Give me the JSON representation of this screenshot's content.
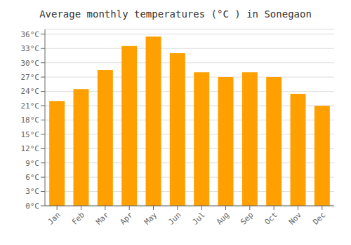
{
  "chart_data": {
    "type": "bar",
    "title": "Average monthly temperatures (°C ) in Sonegaon",
    "categories": [
      "Jan",
      "Feb",
      "Mar",
      "Apr",
      "May",
      "Jun",
      "Jul",
      "Aug",
      "Sep",
      "Oct",
      "Nov",
      "Dec"
    ],
    "values": [
      22,
      24.5,
      28.5,
      33.5,
      35.5,
      32,
      28,
      27,
      28,
      27,
      23.5,
      21
    ],
    "color": "#FFA000",
    "ylim": [
      0,
      37
    ],
    "yticks": [
      {
        "value": 0,
        "label": "0°C"
      },
      {
        "value": 3,
        "label": "3°C"
      },
      {
        "value": 6,
        "label": "6°C"
      },
      {
        "value": 9,
        "label": "9°C"
      },
      {
        "value": 12,
        "label": "12°C"
      },
      {
        "value": 15,
        "label": "15°C"
      },
      {
        "value": 18,
        "label": "18°C"
      },
      {
        "value": 21,
        "label": "21°C"
      },
      {
        "value": 24,
        "label": "24°C"
      },
      {
        "value": 27,
        "label": "27°C"
      },
      {
        "value": 30,
        "label": "30°C"
      },
      {
        "value": 33,
        "label": "33°C"
      },
      {
        "value": 36,
        "label": "36°C"
      }
    ],
    "grid": true
  }
}
